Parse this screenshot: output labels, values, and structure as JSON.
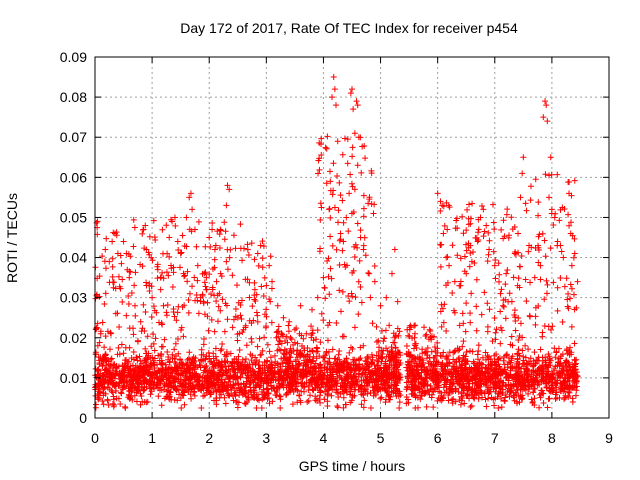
{
  "chart_data": {
    "type": "scatter",
    "title": "Day 172 of 2017, Rate Of TEC Index for receiver p454",
    "xlabel": "GPS time / hours",
    "ylabel": "ROTI / TECUs",
    "xlim": [
      0,
      9
    ],
    "ylim": [
      0,
      0.09
    ],
    "xticks": [
      "0",
      "1",
      "2",
      "3",
      "4",
      "5",
      "6",
      "7",
      "8",
      "9"
    ],
    "yticks": [
      "0",
      "0.01",
      "0.02",
      "0.03",
      "0.04",
      "0.05",
      "0.06",
      "0.07",
      "0.08",
      "0.09"
    ],
    "grid": true,
    "marker": "+",
    "color": "#ff0000",
    "data_coverage_hours": [
      0.0,
      8.45
    ],
    "gap_hours": [
      5.35,
      5.45
    ],
    "background_level": 0.01,
    "series": [
      {
        "name": "ROTI",
        "points": [
          [
            0.05,
            0.018
          ],
          [
            0.1,
            0.021
          ],
          [
            0.18,
            0.042
          ],
          [
            0.25,
            0.039
          ],
          [
            0.3,
            0.044
          ],
          [
            0.35,
            0.046
          ],
          [
            0.4,
            0.041
          ],
          [
            0.5,
            0.044
          ],
          [
            0.55,
            0.041
          ],
          [
            0.6,
            0.035
          ],
          [
            0.7,
            0.028
          ],
          [
            0.8,
            0.024
          ],
          [
            0.85,
            0.047
          ],
          [
            0.88,
            0.048
          ],
          [
            0.9,
            0.042
          ],
          [
            0.95,
            0.033
          ],
          [
            1.0,
            0.03
          ],
          [
            1.1,
            0.037
          ],
          [
            1.15,
            0.032
          ],
          [
            1.2,
            0.028
          ],
          [
            1.3,
            0.045
          ],
          [
            1.35,
            0.049
          ],
          [
            1.4,
            0.05
          ],
          [
            1.45,
            0.044
          ],
          [
            1.5,
            0.041
          ],
          [
            1.55,
            0.036
          ],
          [
            1.6,
            0.05
          ],
          [
            1.65,
            0.055
          ],
          [
            1.68,
            0.056
          ],
          [
            1.7,
            0.052
          ],
          [
            1.75,
            0.047
          ],
          [
            1.8,
            0.038
          ],
          [
            1.85,
            0.03
          ],
          [
            1.9,
            0.029
          ],
          [
            1.95,
            0.035
          ],
          [
            2.0,
            0.045
          ],
          [
            2.05,
            0.047
          ],
          [
            2.1,
            0.042
          ],
          [
            2.2,
            0.036
          ],
          [
            2.3,
            0.053
          ],
          [
            2.32,
            0.058
          ],
          [
            2.35,
            0.057
          ],
          [
            2.3,
            0.039
          ],
          [
            2.5,
            0.025
          ],
          [
            2.6,
            0.022
          ],
          [
            2.8,
            0.032
          ],
          [
            2.85,
            0.041
          ],
          [
            2.9,
            0.043
          ],
          [
            3.0,
            0.033
          ],
          [
            3.05,
            0.038
          ],
          [
            3.1,
            0.034
          ],
          [
            3.2,
            0.028
          ],
          [
            3.3,
            0.025
          ],
          [
            3.4,
            0.024
          ],
          [
            3.5,
            0.022
          ],
          [
            3.6,
            0.028
          ],
          [
            3.7,
            0.021
          ],
          [
            3.8,
            0.027
          ],
          [
            3.9,
            0.03
          ],
          [
            4.0,
            0.035
          ],
          [
            4.1,
            0.052
          ],
          [
            4.12,
            0.059
          ],
          [
            4.15,
            0.08
          ],
          [
            4.18,
            0.085
          ],
          [
            4.2,
            0.082
          ],
          [
            4.22,
            0.078
          ],
          [
            4.25,
            0.069
          ],
          [
            4.3,
            0.046
          ],
          [
            4.35,
            0.044
          ],
          [
            4.4,
            0.05
          ],
          [
            4.45,
            0.056
          ],
          [
            4.48,
            0.081
          ],
          [
            4.5,
            0.082
          ],
          [
            4.52,
            0.077
          ],
          [
            4.55,
            0.071
          ],
          [
            4.58,
            0.079
          ],
          [
            4.6,
            0.078
          ],
          [
            4.62,
            0.07
          ],
          [
            4.6,
            0.063
          ],
          [
            4.55,
            0.057
          ],
          [
            4.65,
            0.045
          ],
          [
            4.7,
            0.042
          ],
          [
            4.8,
            0.036
          ],
          [
            4.9,
            0.034
          ],
          [
            5.0,
            0.028
          ],
          [
            5.1,
            0.03
          ],
          [
            5.2,
            0.036
          ],
          [
            5.25,
            0.042
          ],
          [
            5.3,
            0.029
          ],
          [
            6.0,
            0.056
          ],
          [
            6.05,
            0.054
          ],
          [
            6.08,
            0.053
          ],
          [
            6.1,
            0.046
          ],
          [
            6.15,
            0.04
          ],
          [
            6.2,
            0.038
          ],
          [
            6.3,
            0.034
          ],
          [
            6.4,
            0.033
          ],
          [
            6.5,
            0.036
          ],
          [
            6.6,
            0.039
          ],
          [
            6.7,
            0.044
          ],
          [
            6.75,
            0.05
          ],
          [
            6.8,
            0.052
          ],
          [
            6.85,
            0.048
          ],
          [
            6.9,
            0.042
          ],
          [
            7.0,
            0.038
          ],
          [
            7.1,
            0.031
          ],
          [
            7.2,
            0.036
          ],
          [
            7.3,
            0.029
          ],
          [
            7.4,
            0.033
          ],
          [
            7.45,
            0.055
          ],
          [
            7.48,
            0.061
          ],
          [
            7.5,
            0.065
          ],
          [
            7.6,
            0.043
          ],
          [
            7.7,
            0.035
          ],
          [
            7.8,
            0.038
          ],
          [
            7.85,
            0.075
          ],
          [
            7.88,
            0.079
          ],
          [
            7.9,
            0.078
          ],
          [
            7.92,
            0.074
          ],
          [
            7.95,
            0.055
          ],
          [
            7.98,
            0.065
          ],
          [
            8.0,
            0.052
          ],
          [
            8.05,
            0.05
          ],
          [
            8.1,
            0.044
          ],
          [
            8.15,
            0.043
          ],
          [
            8.2,
            0.04
          ],
          [
            8.3,
            0.056
          ],
          [
            8.35,
            0.038
          ],
          [
            8.4,
            0.041
          ],
          [
            8.45,
            0.034
          ]
        ]
      }
    ]
  }
}
